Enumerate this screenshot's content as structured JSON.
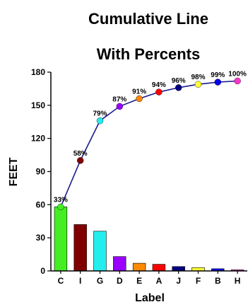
{
  "chart_data": {
    "type": "bar",
    "title": [
      "Cumulative Line",
      "With Percents"
    ],
    "xlabel": "Label",
    "ylabel": "FEET",
    "ylim": [
      0,
      180
    ],
    "yticks": [
      0,
      30,
      60,
      90,
      120,
      150,
      180
    ],
    "grid": false,
    "categories": [
      "C",
      "I",
      "G",
      "D",
      "E",
      "A",
      "J",
      "F",
      "B",
      "H"
    ],
    "values": [
      58,
      42,
      36,
      13,
      7,
      6,
      4,
      3,
      2,
      1
    ],
    "bar_colors": [
      "#44ee22",
      "#800000",
      "#22eeee",
      "#9900ff",
      "#ff8800",
      "#ff0000",
      "#000080",
      "#ffff33",
      "#0000ee",
      "#ff33cc"
    ],
    "cumulative_line": {
      "color": "#1a1a8c",
      "values": [
        58,
        100,
        136,
        149,
        156,
        162,
        166,
        169,
        171,
        172
      ],
      "percent_labels": [
        "33%",
        "58%",
        "79%",
        "87%",
        "91%",
        "94%",
        "96%",
        "98%",
        "99%",
        "100%"
      ],
      "marker_colors": [
        "#44ee22",
        "#800000",
        "#22eeee",
        "#9900ff",
        "#ff8800",
        "#ff0000",
        "#000080",
        "#ffff33",
        "#0000ee",
        "#ff33cc"
      ]
    }
  }
}
